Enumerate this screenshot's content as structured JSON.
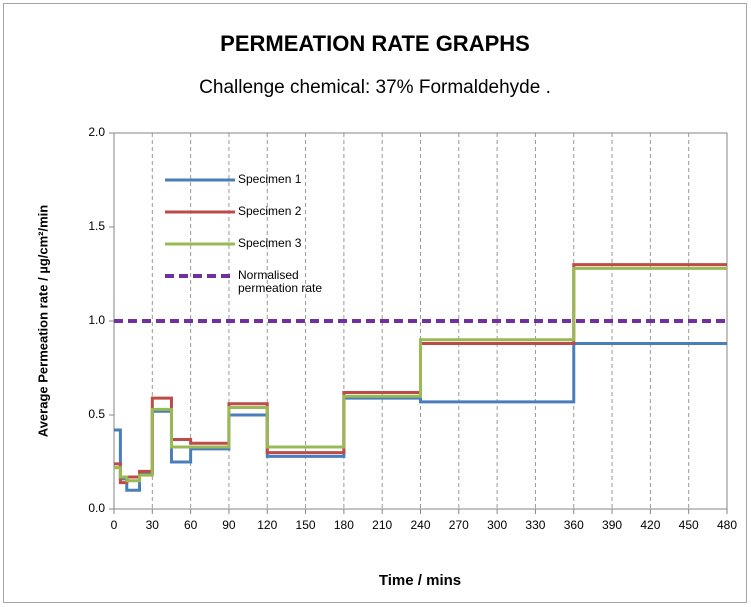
{
  "chart_data": {
    "type": "line",
    "step": "post",
    "title": "PERMEATION RATE GRAPHS",
    "subtitle": "Challenge chemical: 37% Formaldehyde .",
    "x_label": "Time / mins",
    "y_label": "Average Permeation rate / µg/cm²/min",
    "x": [
      0,
      5,
      10,
      20,
      30,
      45,
      60,
      90,
      120,
      180,
      240,
      360,
      480
    ],
    "series": [
      {
        "name": "Specimen 1",
        "color": "#4a7ebb",
        "values": [
          0.42,
          0.16,
          0.1,
          0.19,
          0.52,
          0.25,
          0.32,
          0.5,
          0.28,
          0.59,
          0.57,
          0.88,
          0.88
        ]
      },
      {
        "name": "Specimen 2",
        "color": "#be4b48",
        "values": [
          0.24,
          0.14,
          0.17,
          0.2,
          0.59,
          0.37,
          0.35,
          0.56,
          0.3,
          0.62,
          0.88,
          1.3,
          1.3
        ]
      },
      {
        "name": "Specimen 3",
        "color": "#98b954",
        "values": [
          0.22,
          0.17,
          0.15,
          0.18,
          0.53,
          0.33,
          0.33,
          0.54,
          0.33,
          0.6,
          0.9,
          1.28,
          1.28
        ]
      },
      {
        "name": "Normalised permeation rate",
        "color": "#7030a0",
        "dashed": true,
        "values": [
          1.0,
          1.0,
          1.0,
          1.0,
          1.0,
          1.0,
          1.0,
          1.0,
          1.0,
          1.0,
          1.0,
          1.0,
          1.0
        ]
      }
    ],
    "xlim": [
      0,
      480
    ],
    "xticks": [
      0,
      30,
      60,
      90,
      120,
      150,
      180,
      210,
      240,
      270,
      300,
      330,
      360,
      390,
      420,
      450,
      480
    ],
    "ylim": [
      0,
      2
    ],
    "yticks": [
      {
        "value": 0,
        "label": "0.0"
      },
      0.5,
      {
        "value": 1,
        "label": "1.0"
      },
      1.5,
      {
        "value": 2,
        "label": "2.0"
      }
    ],
    "grid": "x",
    "legend": "upper left"
  }
}
